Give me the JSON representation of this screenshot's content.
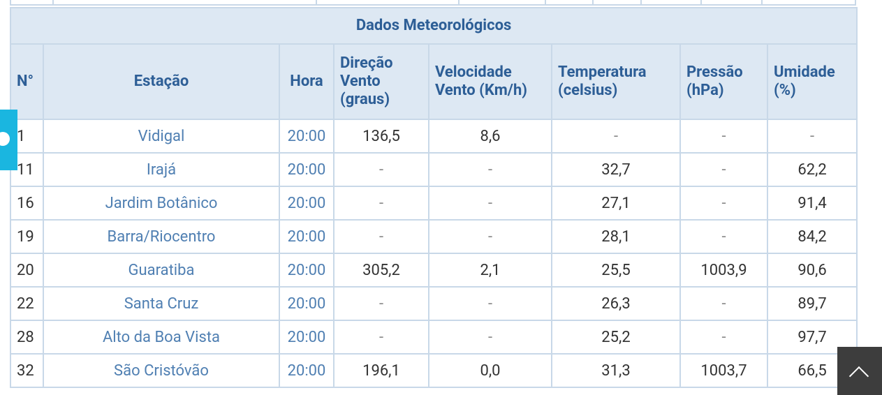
{
  "table": {
    "title": "Dados Meteorológicos",
    "headers": [
      "N°",
      "Estação",
      "Hora",
      "Direção Vento (graus)",
      "Velocidade Vento (Km/h)",
      "Temperatura (celsius)",
      "Pressão (hPa)",
      "Umidade (%)"
    ],
    "rows": [
      [
        "1",
        "Vidigal",
        "20:00",
        "136,5",
        "8,6",
        "-",
        "-",
        "-"
      ],
      [
        "11",
        "Irajá",
        "20:00",
        "-",
        "-",
        "32,7",
        "-",
        "62,2"
      ],
      [
        "16",
        "Jardim Botânico",
        "20:00",
        "-",
        "-",
        "27,1",
        "-",
        "91,4"
      ],
      [
        "19",
        "Barra/Riocentro",
        "20:00",
        "-",
        "-",
        "28,1",
        "-",
        "84,2"
      ],
      [
        "20",
        "Guaratiba",
        "20:00",
        "305,2",
        "2,1",
        "25,5",
        "1003,9",
        "90,6"
      ],
      [
        "22",
        "Santa Cruz",
        "20:00",
        "-",
        "-",
        "26,3",
        "-",
        "89,7"
      ],
      [
        "28",
        "Alto da Boa Vista",
        "20:00",
        "-",
        "-",
        "25,2",
        "-",
        "97,7"
      ],
      [
        "32",
        "São Cristóvão",
        "20:00",
        "196,1",
        "0,0",
        "31,3",
        "1003,7",
        "66,5"
      ]
    ]
  }
}
